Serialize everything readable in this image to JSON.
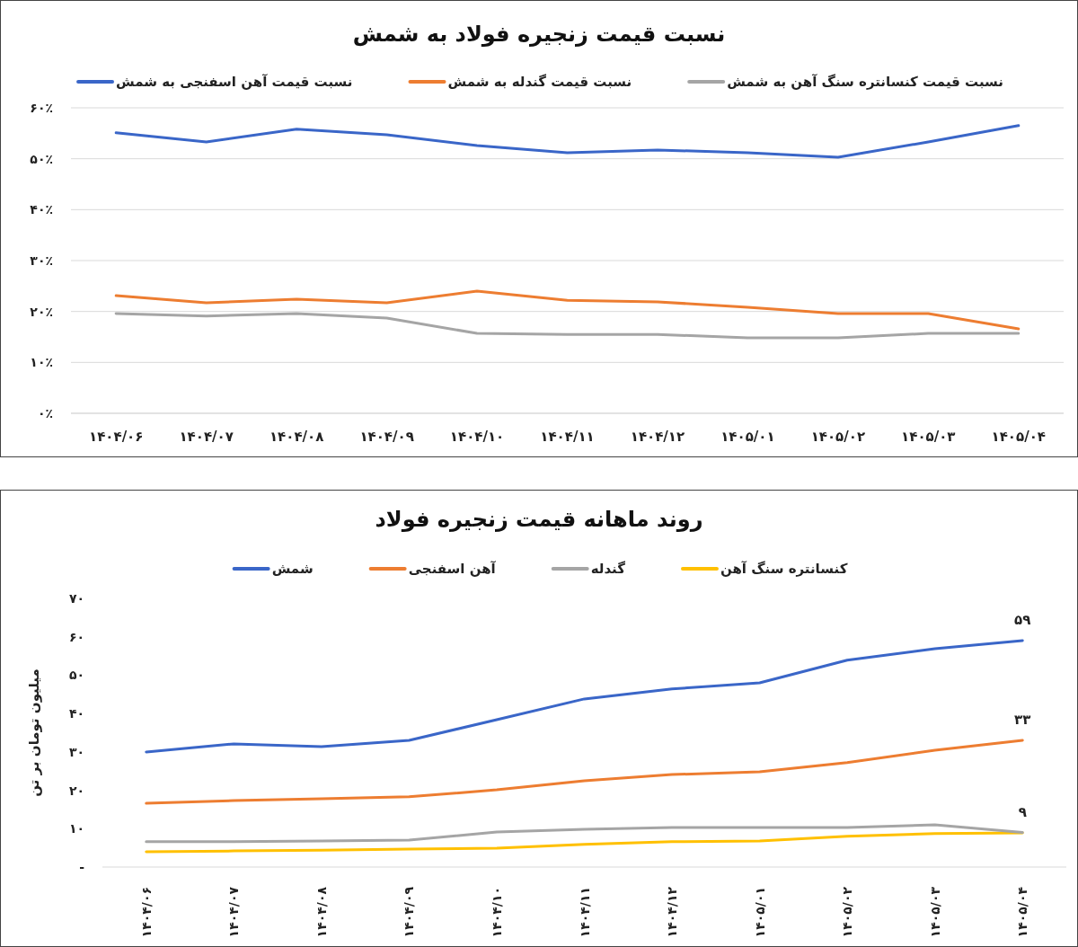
{
  "chart_data": [
    {
      "type": "line",
      "title": "نسبت قیمت زنجیره فولاد به شمش",
      "categories": [
        "۱۴۰۴/۰۶",
        "۱۴۰۴/۰۷",
        "۱۴۰۴/۰۸",
        "۱۴۰۴/۰۹",
        "۱۴۰۴/۱۰",
        "۱۴۰۴/۱۱",
        "۱۴۰۴/۱۲",
        "۱۴۰۵/۰۱",
        "۱۴۰۵/۰۲",
        "۱۴۰۵/۰۳",
        "۱۴۰۵/۰۴"
      ],
      "series": [
        {
          "name": "نسبت قیمت کنسانتره سنگ آهن به شمش",
          "color": "#a5a5a5",
          "values": [
            19.6,
            19.1,
            19.6,
            18.7,
            15.7,
            15.5,
            15.5,
            14.8,
            14.8,
            15.7,
            15.7
          ]
        },
        {
          "name": "نسبت قیمت گندله به شمش",
          "color": "#ed7d31",
          "values": [
            23.1,
            21.7,
            22.4,
            21.7,
            24.0,
            22.2,
            21.9,
            20.8,
            19.6,
            19.6,
            16.6
          ]
        },
        {
          "name": "نسبت قیمت آهن اسفنجی به شمش",
          "color": "#3a66c8",
          "values": [
            55.1,
            53.3,
            55.8,
            54.7,
            52.6,
            51.2,
            51.7,
            51.2,
            50.3,
            53.3,
            56.5
          ]
        }
      ],
      "ylim": [
        0,
        60
      ],
      "yticks": [
        {
          "value": 0,
          "label": "۰٪"
        },
        {
          "value": 10,
          "label": "۱۰٪"
        },
        {
          "value": 20,
          "label": "۲۰٪"
        },
        {
          "value": 30,
          "label": "۳۰٪"
        },
        {
          "value": 40,
          "label": "۴۰٪"
        },
        {
          "value": 50,
          "label": "۵۰٪"
        },
        {
          "value": 60,
          "label": "۶۰٪"
        }
      ],
      "grid": "y",
      "legend": "top"
    },
    {
      "type": "line",
      "title": "روند ماهانه قیمت زنجیره فولاد",
      "ylabel": "میلیون تومان بر تن",
      "categories": [
        "۱۴۰۴/۰۶",
        "۱۴۰۴/۰۷",
        "۱۴۰۴/۰۸",
        "۱۴۰۴/۰۹",
        "۱۴۰۴/۱۰",
        "۱۴۰۴/۱۱",
        "۱۴۰۴/۱۲",
        "۱۴۰۵/۰۱",
        "۱۴۰۵/۰۲",
        "۱۴۰۵/۰۳",
        "۱۴۰۵/۰۴"
      ],
      "series": [
        {
          "name": "کنسانتره سنگ آهن",
          "color": "#ffc000",
          "values": [
            4.0,
            4.2,
            4.4,
            4.7,
            4.9,
            5.9,
            6.6,
            6.8,
            8.0,
            8.7,
            8.9
          ]
        },
        {
          "name": "گندله",
          "color": "#a5a5a5",
          "values": [
            6.6,
            6.6,
            6.8,
            7.0,
            9.1,
            9.8,
            10.3,
            10.3,
            10.3,
            11.0,
            9
          ],
          "value_labels": [
            null,
            null,
            null,
            null,
            null,
            null,
            null,
            null,
            null,
            null,
            "۹"
          ]
        },
        {
          "name": "آهن اسفنجی",
          "color": "#ed7d31",
          "values": [
            16.6,
            17.3,
            17.8,
            18.3,
            20.1,
            22.5,
            24.1,
            24.8,
            27.2,
            30.4,
            33
          ],
          "value_labels": [
            null,
            null,
            null,
            null,
            null,
            null,
            null,
            null,
            null,
            null,
            "۳۳"
          ]
        },
        {
          "name": "شمش",
          "color": "#3a66c8",
          "values": [
            30.0,
            32.1,
            31.4,
            33.0,
            38.4,
            43.8,
            46.4,
            48.0,
            53.9,
            56.9,
            59
          ],
          "value_labels": [
            null,
            null,
            null,
            null,
            null,
            null,
            null,
            null,
            null,
            null,
            "۵۹"
          ]
        }
      ],
      "ylim": [
        0,
        70
      ],
      "yticks": [
        {
          "value": 0,
          "label": "-"
        },
        {
          "value": 10,
          "label": "۱۰"
        },
        {
          "value": 20,
          "label": "۲۰"
        },
        {
          "value": 30,
          "label": "۳۰"
        },
        {
          "value": 40,
          "label": "۴۰"
        },
        {
          "value": 50,
          "label": "۵۰"
        },
        {
          "value": 60,
          "label": "۶۰"
        },
        {
          "value": 70,
          "label": "۷۰"
        }
      ],
      "legend": "top"
    }
  ]
}
